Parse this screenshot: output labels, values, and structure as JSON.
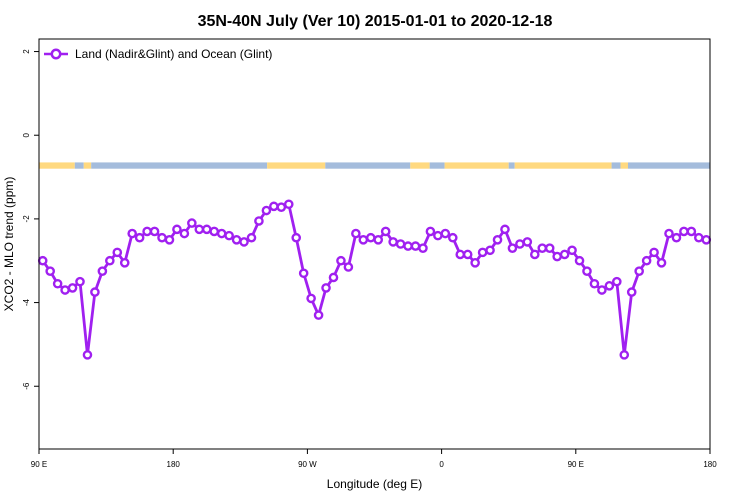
{
  "chart_data": {
    "type": "line",
    "title": "35N-40N July (Ver 10)   2015-01-01 to 2020-12-18",
    "xlabel": "Longitude (deg E)",
    "ylabel": "XCO2 - MLO trend (ppm)",
    "xlim": [
      90,
      540
    ],
    "ylim": [
      -7.5,
      2.3
    ],
    "x_ticks": [
      {
        "value": 90,
        "label": "90 E"
      },
      {
        "value": 180,
        "label": "180"
      },
      {
        "value": 270,
        "label": "90 W"
      },
      {
        "value": 360,
        "label": "0"
      },
      {
        "value": 450,
        "label": "90 E"
      },
      {
        "value": 540,
        "label": "180"
      }
    ],
    "y_ticks": [
      {
        "value": 2,
        "label": "2"
      },
      {
        "value": 0,
        "label": "0"
      },
      {
        "value": -2,
        "label": "-2"
      },
      {
        "value": -4,
        "label": "-4"
      },
      {
        "value": -6,
        "label": "-6"
      }
    ],
    "legend": {
      "position": "top-left",
      "entries": [
        {
          "name": "Land (Nadir&Glint) and Ocean (Glint)",
          "color": "#a020f0"
        }
      ]
    },
    "series": [
      {
        "name": "Land (Nadir&Glint) and Ocean (Glint)",
        "color": "#a020f0",
        "x": [
          92.5,
          97.5,
          102.5,
          107.5,
          112.5,
          117.5,
          122.5,
          127.5,
          132.5,
          137.5,
          142.5,
          147.5,
          152.5,
          157.5,
          162.5,
          167.5,
          172.5,
          177.5,
          182.5,
          187.5,
          192.5,
          197.5,
          202.5,
          207.5,
          212.5,
          217.5,
          222.5,
          227.5,
          232.5,
          237.5,
          242.5,
          247.5,
          252.5,
          257.5,
          262.5,
          267.5,
          272.5,
          277.5,
          282.5,
          287.5,
          292.5,
          297.5,
          302.5,
          307.5,
          312.5,
          317.5,
          322.5,
          327.5,
          332.5,
          337.5,
          342.5,
          347.5,
          352.5,
          357.5,
          362.5,
          367.5,
          372.5,
          377.5,
          382.5,
          387.5,
          392.5,
          397.5,
          402.5,
          407.5,
          412.5,
          417.5,
          422.5,
          427.5,
          432.5,
          437.5,
          442.5,
          447.5,
          452.5,
          457.5,
          462.5,
          467.5,
          472.5,
          477.5,
          482.5,
          487.5,
          492.5,
          497.5,
          502.5,
          507.5,
          512.5,
          517.5,
          522.5,
          527.5,
          532.5,
          537.5
        ],
        "y": [
          -3.0,
          -3.25,
          -3.55,
          -3.7,
          -3.65,
          -3.5,
          -5.25,
          -3.75,
          -3.25,
          -3.0,
          -2.8,
          -3.05,
          -2.35,
          -2.45,
          -2.3,
          -2.3,
          -2.45,
          -2.5,
          -2.25,
          -2.35,
          -2.1,
          -2.25,
          -2.25,
          -2.3,
          -2.35,
          -2.4,
          -2.5,
          -2.55,
          -2.45,
          -2.05,
          -1.8,
          -1.7,
          -1.72,
          -1.65,
          -2.45,
          -3.3,
          -3.9,
          -4.3,
          -3.65,
          -3.4,
          -3.0,
          -3.15,
          -2.35,
          -2.5,
          -2.45,
          -2.5,
          -2.3,
          -2.55,
          -2.6,
          -2.65,
          -2.65,
          -2.7,
          -2.3,
          -2.4,
          -2.35,
          -2.45,
          -2.85,
          -2.85,
          -3.05,
          -2.8,
          -2.75,
          -2.5,
          -2.25,
          -2.7,
          -2.6,
          -2.55,
          -2.85,
          -2.7,
          -2.7,
          -2.9,
          -2.85,
          -2.75,
          -3.0,
          -3.25,
          -3.55,
          -3.7,
          -3.6,
          -3.5,
          -5.25,
          -3.75,
          -3.25,
          -3.0,
          -2.8,
          -3.05,
          -2.35,
          -2.45,
          -2.3,
          -2.3,
          -2.45,
          -2.5
        ]
      }
    ],
    "surface_strip": {
      "y_range": [
        -0.8,
        -0.65
      ],
      "colors": {
        "land": "#ffd980",
        "ocean": "#a4bcdc"
      },
      "segments": [
        {
          "type": "land",
          "from": 90,
          "to": 114
        },
        {
          "type": "ocean",
          "from": 114,
          "to": 120
        },
        {
          "type": "land",
          "from": 120,
          "to": 125
        },
        {
          "type": "ocean",
          "from": 125,
          "to": 243
        },
        {
          "type": "land",
          "from": 243,
          "to": 282
        },
        {
          "type": "ocean",
          "from": 282,
          "to": 339
        },
        {
          "type": "land",
          "from": 339,
          "to": 352
        },
        {
          "type": "ocean",
          "from": 352,
          "to": 362
        },
        {
          "type": "land",
          "from": 362,
          "to": 405
        },
        {
          "type": "ocean",
          "from": 405,
          "to": 409
        },
        {
          "type": "land",
          "from": 409,
          "to": 474
        },
        {
          "type": "ocean",
          "from": 474,
          "to": 480
        },
        {
          "type": "land",
          "from": 480,
          "to": 485
        },
        {
          "type": "ocean",
          "from": 485,
          "to": 540
        }
      ]
    }
  }
}
